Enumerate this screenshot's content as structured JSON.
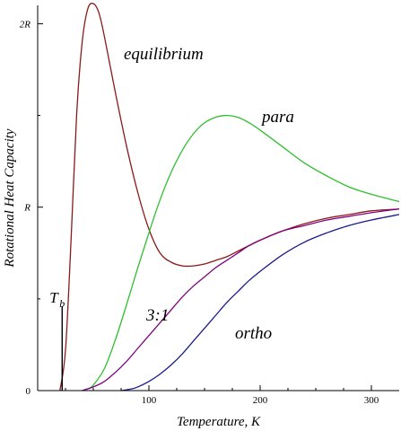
{
  "chart_data": {
    "type": "line",
    "xlabel": "Temperature, K",
    "ylabel": "Rotational Heat Capacity",
    "xlim": [
      0,
      325
    ],
    "ylim": [
      0,
      2.1
    ],
    "x_ticks": [
      {
        "value": 100,
        "label": "100"
      },
      {
        "value": 200,
        "label": "200"
      },
      {
        "value": 300,
        "label": "300"
      }
    ],
    "y_ticks": [
      {
        "value": 0,
        "label": "0"
      },
      {
        "value": 1,
        "label": "R"
      },
      {
        "value": 2,
        "label": "2R"
      }
    ],
    "grid": false,
    "legend": "none (series labeled directly on curves)",
    "annotation": {
      "label": "T",
      "subscript": "b",
      "x": 22,
      "y_top": 0.46,
      "color": "#000000"
    },
    "series": [
      {
        "name": "equilibrium",
        "color": "#8b1a1a",
        "x": [
          20,
          25,
          30,
          35,
          40,
          45,
          50,
          55,
          60,
          70,
          80,
          90,
          100,
          110,
          120,
          130,
          140,
          150,
          160,
          170,
          180,
          200,
          220,
          240,
          260,
          280,
          300,
          325
        ],
        "y": [
          0.0,
          0.22,
          0.82,
          1.5,
          1.9,
          2.08,
          2.11,
          2.06,
          1.93,
          1.62,
          1.33,
          1.08,
          0.88,
          0.75,
          0.7,
          0.68,
          0.68,
          0.69,
          0.71,
          0.73,
          0.76,
          0.82,
          0.87,
          0.91,
          0.94,
          0.96,
          0.98,
          0.99
        ]
      },
      {
        "name": "para",
        "color": "#2fbf2f",
        "x": [
          40,
          45,
          50,
          60,
          70,
          80,
          90,
          100,
          110,
          120,
          130,
          140,
          150,
          160,
          170,
          180,
          190,
          200,
          220,
          240,
          260,
          280,
          300,
          325
        ],
        "y": [
          0.0,
          0.01,
          0.03,
          0.12,
          0.28,
          0.47,
          0.67,
          0.86,
          1.04,
          1.19,
          1.31,
          1.4,
          1.46,
          1.49,
          1.5,
          1.49,
          1.46,
          1.42,
          1.33,
          1.24,
          1.17,
          1.11,
          1.07,
          1.03
        ]
      },
      {
        "name": "3:1",
        "color": "#800080",
        "x": [
          40,
          50,
          60,
          70,
          80,
          90,
          100,
          110,
          120,
          130,
          140,
          150,
          160,
          170,
          180,
          190,
          200,
          220,
          240,
          260,
          280,
          300,
          325
        ],
        "y": [
          0.0,
          0.02,
          0.05,
          0.1,
          0.16,
          0.23,
          0.3,
          0.37,
          0.44,
          0.51,
          0.57,
          0.62,
          0.67,
          0.71,
          0.75,
          0.79,
          0.82,
          0.87,
          0.9,
          0.93,
          0.95,
          0.97,
          0.99
        ]
      },
      {
        "name": "ortho",
        "color": "#1a1a8b",
        "x": [
          75,
          85,
          90,
          100,
          110,
          120,
          130,
          140,
          150,
          160,
          170,
          180,
          190,
          200,
          220,
          240,
          260,
          280,
          300,
          325
        ],
        "y": [
          0.0,
          0.01,
          0.02,
          0.05,
          0.09,
          0.14,
          0.2,
          0.27,
          0.34,
          0.41,
          0.48,
          0.54,
          0.6,
          0.65,
          0.74,
          0.81,
          0.86,
          0.9,
          0.93,
          0.96
        ]
      }
    ]
  }
}
